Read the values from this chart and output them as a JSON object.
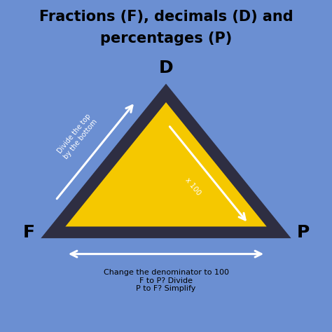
{
  "title_line1": "Fractions (F), decimals (D) and",
  "title_line2": "percentages (P)",
  "title_fontsize": 15,
  "bg_color": "#6b8fd2",
  "triangle_fill": "#f5c800",
  "triangle_edge": "#2e2e42",
  "vertex_D": [
    0.5,
    0.72
  ],
  "vertex_F": [
    0.16,
    0.3
  ],
  "vertex_P": [
    0.84,
    0.3
  ],
  "label_D": "D",
  "label_F": "F",
  "label_P": "P",
  "label_fontsize": 18,
  "arrow_left_text": "Divide the top\nby the bottom",
  "arrow_right_text": "x 100",
  "arrow_bottom_text": "Change the denominator to 100\nF to P? Divide\nP to F? Simplify",
  "font_color_title": "#000000",
  "font_color_labels": "#000000",
  "font_color_arrows": "#ffffff",
  "font_color_bottom": "#000000",
  "edge_linewidth": 12
}
